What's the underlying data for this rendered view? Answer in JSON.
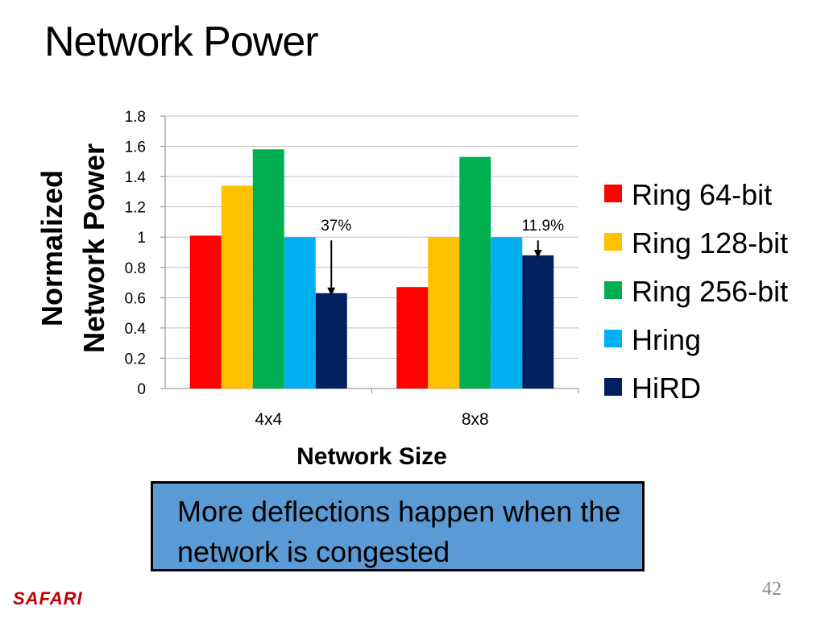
{
  "slide": {
    "title": "Network Power",
    "callout": "More deflections happen when the network is congested",
    "logo": "SAFARI",
    "page_number": "42"
  },
  "chart_data": {
    "type": "bar",
    "title": "",
    "xlabel": "Network Size",
    "ylabel_lines": [
      "Normalized",
      "Network Power"
    ],
    "categories": [
      "4x4",
      "8x8"
    ],
    "ylim": [
      0,
      1.8
    ],
    "yticks": [
      "0",
      "0.2",
      "0.4",
      "0.6",
      "0.8",
      "1",
      "1.2",
      "1.4",
      "1.6",
      "1.8"
    ],
    "grid": true,
    "legend_position": "right",
    "series": [
      {
        "name": "Ring 64-bit",
        "color": "#ff0000",
        "values": [
          1.01,
          0.67
        ]
      },
      {
        "name": "Ring 128-bit",
        "color": "#ffc000",
        "values": [
          1.34,
          1.0
        ]
      },
      {
        "name": "Ring 256-bit",
        "color": "#00b050",
        "values": [
          1.58,
          1.53
        ]
      },
      {
        "name": "Hring",
        "color": "#00b0f0",
        "values": [
          1.0,
          1.0
        ]
      },
      {
        "name": "HiRD",
        "color": "#002060",
        "values": [
          0.63,
          0.88
        ]
      }
    ],
    "annotations": [
      {
        "category": 0,
        "series": 4,
        "label": "37%"
      },
      {
        "category": 1,
        "series": 4,
        "label": "11.9%"
      }
    ]
  }
}
